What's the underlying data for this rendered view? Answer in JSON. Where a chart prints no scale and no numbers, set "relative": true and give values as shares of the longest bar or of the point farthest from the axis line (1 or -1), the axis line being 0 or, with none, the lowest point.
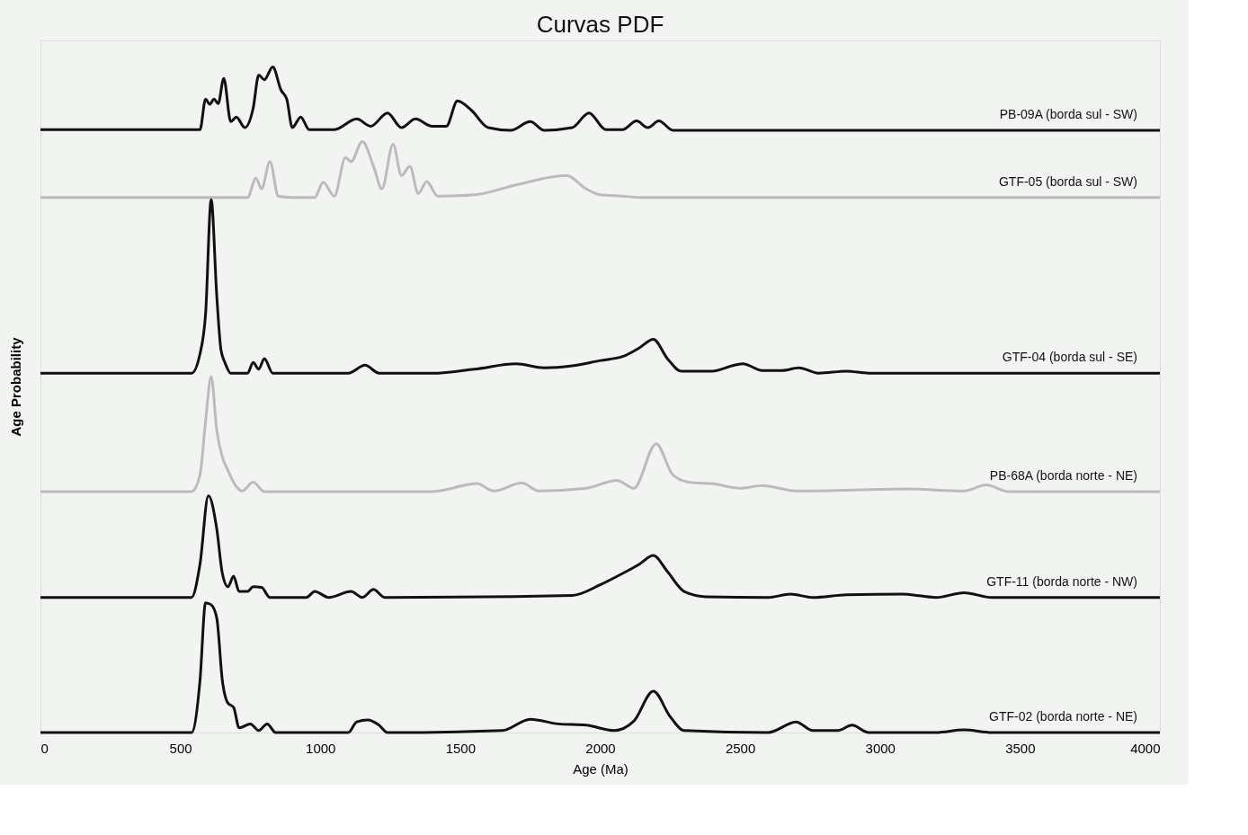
{
  "chart_data": {
    "type": "line",
    "title": "Curvas PDF",
    "xlabel": "Age (Ma)",
    "ylabel": "Age Probability",
    "relative": true,
    "xlim": [
      0,
      4000
    ],
    "xticks": [
      0,
      500,
      1000,
      1500,
      2000,
      2500,
      3000,
      3500,
      4000
    ],
    "grid": false,
    "legend": false,
    "tick_labels": "x",
    "marker": "none",
    "line_style": "solid",
    "series": [
      {
        "name": "PB-09A (borda sul - SW)",
        "color": "#111111",
        "x": [
          0,
          570,
          590,
          605,
          620,
          635,
          655,
          680,
          700,
          730,
          760,
          780,
          800,
          830,
          860,
          880,
          900,
          930,
          960,
          1050,
          1130,
          1180,
          1240,
          1290,
          1340,
          1400,
          1450,
          1490,
          1540,
          1600,
          1680,
          1750,
          1800,
          1900,
          1960,
          2020,
          2080,
          2130,
          2170,
          2210,
          2260,
          4000
        ],
        "values": [
          0.906,
          0.906,
          0.952,
          0.944,
          0.952,
          0.945,
          0.983,
          0.918,
          0.925,
          0.909,
          0.938,
          0.988,
          0.981,
          1.0,
          0.965,
          0.952,
          0.909,
          0.925,
          0.906,
          0.906,
          0.922,
          0.911,
          0.931,
          0.909,
          0.922,
          0.911,
          0.911,
          0.949,
          0.935,
          0.909,
          0.905,
          0.918,
          0.905,
          0.909,
          0.931,
          0.906,
          0.906,
          0.919,
          0.909,
          0.919,
          0.905,
          0.905
        ]
      },
      {
        "name": "GTF-05 (borda sul - SW)",
        "color": "#bbbbbb",
        "x": [
          0,
          740,
          770,
          790,
          820,
          850,
          900,
          980,
          1010,
          1050,
          1090,
          1110,
          1150,
          1190,
          1220,
          1260,
          1290,
          1320,
          1350,
          1380,
          1420,
          1550,
          1700,
          1880,
          1950,
          2000,
          2080,
          2150,
          4000
        ],
        "values": [
          0.804,
          0.804,
          0.833,
          0.817,
          0.858,
          0.806,
          0.804,
          0.804,
          0.827,
          0.806,
          0.864,
          0.858,
          0.888,
          0.851,
          0.817,
          0.884,
          0.837,
          0.851,
          0.81,
          0.828,
          0.806,
          0.808,
          0.823,
          0.837,
          0.817,
          0.808,
          0.806,
          0.804,
          0.804
        ]
      },
      {
        "name": "GTF-04 (borda sul - SE)",
        "color": "#111111",
        "x": [
          0,
          540,
          570,
          590,
          610,
          630,
          645,
          660,
          680,
          740,
          760,
          780,
          800,
          830,
          1100,
          1160,
          1210,
          1400,
          1550,
          1700,
          1800,
          1900,
          2000,
          2080,
          2140,
          2190,
          2240,
          2290,
          2400,
          2480,
          2510,
          2580,
          2650,
          2710,
          2780,
          2880,
          2960,
          4000
        ],
        "values": [
          0.54,
          0.54,
          0.569,
          0.629,
          0.801,
          0.656,
          0.575,
          0.555,
          0.54,
          0.54,
          0.556,
          0.546,
          0.562,
          0.54,
          0.54,
          0.552,
          0.54,
          0.54,
          0.546,
          0.554,
          0.548,
          0.551,
          0.559,
          0.565,
          0.578,
          0.591,
          0.562,
          0.543,
          0.543,
          0.552,
          0.554,
          0.544,
          0.544,
          0.548,
          0.54,
          0.543,
          0.54,
          0.54
        ]
      },
      {
        "name": "PB-68A (borda norte - NE)",
        "color": "#bbbbbb",
        "x": [
          0,
          540,
          570,
          590,
          610,
          630,
          650,
          670,
          690,
          720,
          760,
          800,
          1400,
          1560,
          1620,
          1720,
          1780,
          1950,
          2060,
          2120,
          2200,
          2260,
          2320,
          2400,
          2500,
          2580,
          2700,
          3100,
          3300,
          3380,
          3460,
          4000
        ],
        "values": [
          0.362,
          0.362,
          0.387,
          0.468,
          0.535,
          0.454,
          0.414,
          0.394,
          0.376,
          0.363,
          0.376,
          0.362,
          0.362,
          0.374,
          0.363,
          0.375,
          0.363,
          0.367,
          0.379,
          0.367,
          0.434,
          0.387,
          0.376,
          0.374,
          0.367,
          0.371,
          0.363,
          0.366,
          0.363,
          0.372,
          0.362,
          0.362
        ]
      },
      {
        "name": "GTF-11 (borda norte - NW)",
        "color": "#111111",
        "x": [
          0,
          540,
          570,
          600,
          630,
          650,
          670,
          690,
          710,
          740,
          760,
          790,
          820,
          950,
          980,
          1030,
          1110,
          1150,
          1190,
          1230,
          1900,
          2000,
          2080,
          2140,
          2190,
          2240,
          2300,
          2380,
          2600,
          2680,
          2760,
          2880,
          3080,
          3200,
          3300,
          3400,
          4000
        ],
        "values": [
          0.203,
          0.203,
          0.253,
          0.356,
          0.306,
          0.239,
          0.219,
          0.235,
          0.212,
          0.212,
          0.219,
          0.218,
          0.203,
          0.203,
          0.212,
          0.203,
          0.212,
          0.203,
          0.215,
          0.203,
          0.206,
          0.222,
          0.239,
          0.253,
          0.266,
          0.242,
          0.212,
          0.204,
          0.203,
          0.208,
          0.203,
          0.207,
          0.208,
          0.203,
          0.21,
          0.203,
          0.203
        ]
      },
      {
        "name": "GTF-02 (borda norte - NE)",
        "color": "#111111",
        "x": [
          0,
          540,
          570,
          590,
          610,
          630,
          650,
          670,
          690,
          710,
          750,
          780,
          810,
          840,
          1100,
          1130,
          1170,
          1210,
          1240,
          1650,
          1750,
          1850,
          1950,
          2050,
          2120,
          2190,
          2250,
          2300,
          2600,
          2700,
          2760,
          2850,
          2900,
          2960,
          3200,
          3300,
          3400,
          4000
        ],
        "values": [
          0,
          0,
          0.078,
          0.195,
          0.192,
          0.172,
          0.078,
          0.044,
          0.038,
          0.007,
          0.013,
          0.003,
          0.013,
          0,
          0,
          0.016,
          0.019,
          0.011,
          0,
          0.003,
          0.02,
          0.013,
          0.011,
          0.003,
          0.017,
          0.062,
          0.024,
          0.003,
          0,
          0.016,
          0.003,
          0.003,
          0.011,
          0,
          0,
          0.004,
          0,
          0
        ]
      }
    ]
  }
}
